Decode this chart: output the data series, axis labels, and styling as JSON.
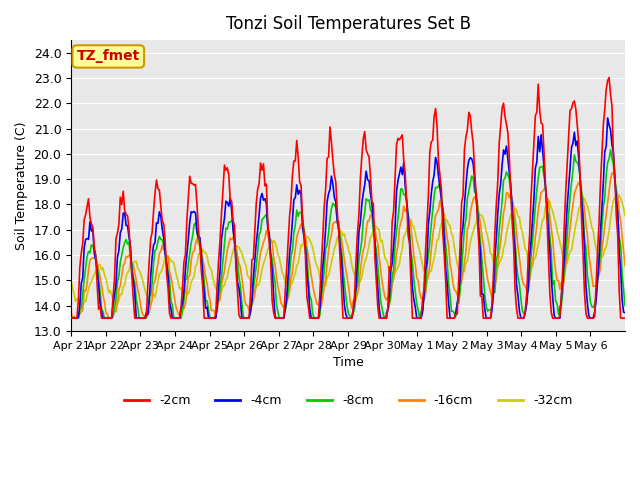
{
  "title": "Tonzi Soil Temperatures Set B",
  "xlabel": "Time",
  "ylabel": "Soil Temperature (C)",
  "ylim": [
    13.0,
    24.5
  ],
  "yticks": [
    13.0,
    14.0,
    15.0,
    16.0,
    17.0,
    18.0,
    19.0,
    20.0,
    21.0,
    22.0,
    23.0,
    24.0
  ],
  "plot_bg": "#e8e8e8",
  "series_colors": [
    "#ff0000",
    "#0000ff",
    "#00cc00",
    "#ff8800",
    "#cccc00"
  ],
  "series_labels": [
    "-2cm",
    "-4cm",
    "-8cm",
    "-16cm",
    "-32cm"
  ],
  "annotation_text": "TZ_fmet",
  "annotation_bg": "#ffff99",
  "annotation_border": "#cc9900",
  "annotation_text_color": "#cc0000",
  "n_days": 16,
  "xtick_labels": [
    "Apr 21",
    "Apr 22",
    "Apr 23",
    "Apr 24",
    "Apr 25",
    "Apr 26",
    "Apr 27",
    "Apr 28",
    "Apr 29",
    "Apr 30",
    "May 1",
    "May 2",
    "May 3",
    "May 4",
    "May 5",
    "May 6"
  ],
  "line_width": 1.2
}
